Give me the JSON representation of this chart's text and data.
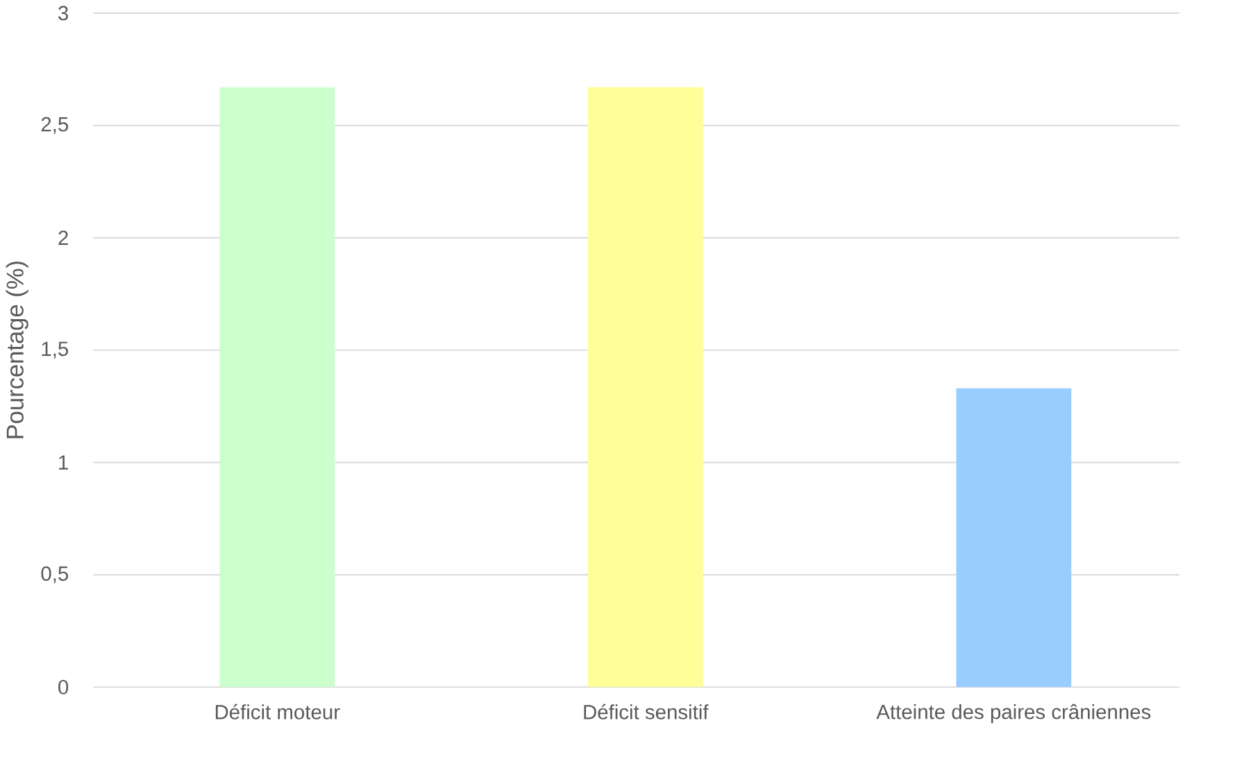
{
  "chart_data": {
    "type": "bar",
    "ylabel": "Pourcentage (%)",
    "categories": [
      "Déficit moteur",
      "Déficit sensitif",
      "Atteinte des paires crâniennes"
    ],
    "values": [
      2.67,
      2.67,
      1.33
    ],
    "colors": [
      "#ccffcc",
      "#ffff99",
      "#99ccff"
    ],
    "ylim": [
      0,
      3
    ],
    "yticks": [
      0,
      {
        "value": 0.5,
        "label": "0,5"
      },
      1,
      {
        "value": 1.5,
        "label": "1,5"
      },
      2,
      {
        "value": 2.5,
        "label": "2,5"
      },
      3
    ],
    "grid": "y"
  }
}
